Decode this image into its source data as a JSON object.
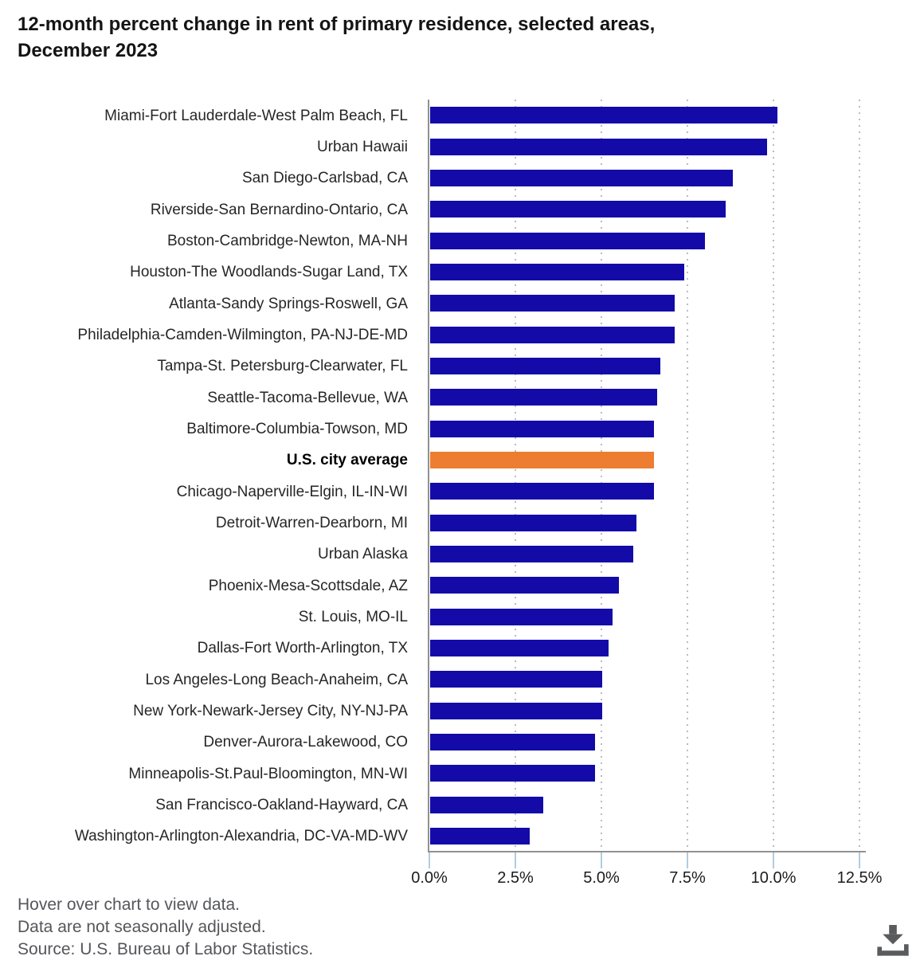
{
  "title": {
    "line1": "12-month percent change in rent of primary residence, selected areas,",
    "line2": "December 2023",
    "full": "12-month percent change in rent of primary residence, selected areas, December 2023"
  },
  "footer": {
    "hover_note": "Hover over chart to view data.",
    "adjustment_note": "Data are not seasonally adjusted.",
    "source_note": "Source: U.S. Bureau of Labor Statistics."
  },
  "icons": {
    "download": "download-icon"
  },
  "colors": {
    "bar_blue": "#130aa8",
    "bar_orange": "#ed7d31",
    "axis_gray": "#919191",
    "gridline_gray": "#bcbcbc",
    "tick_blue": "#b3cbdf",
    "label_dark": "#262626",
    "footer_gray": "#55565a",
    "icon_gray": "#5a5b5d"
  },
  "chart_data": {
    "type": "bar",
    "orientation": "horizontal",
    "title": "12-month percent change in rent of primary residence, selected areas, December 2023",
    "xlabel": "12-month percent change",
    "ylabel": "",
    "grid": "dotted-vertical",
    "legend": "none",
    "xlim": [
      0,
      12.7
    ],
    "x_tick_values": [
      0,
      2.5,
      5,
      7.5,
      10,
      12.5
    ],
    "x_tick_labels": [
      "0.0%",
      "2.5%",
      "5.0%",
      "7.5%",
      "10.0%",
      "12.5%"
    ],
    "highlight_index": 11,
    "categories": [
      "Miami-Fort Lauderdale-West Palm Beach, FL",
      "Urban Hawaii",
      "San Diego-Carlsbad, CA",
      "Riverside-San Bernardino-Ontario, CA",
      "Boston-Cambridge-Newton, MA-NH",
      "Houston-The Woodlands-Sugar Land, TX",
      "Atlanta-Sandy Springs-Roswell, GA",
      "Philadelphia-Camden-Wilmington, PA-NJ-DE-MD",
      "Tampa-St. Petersburg-Clearwater, FL",
      "Seattle-Tacoma-Bellevue, WA",
      "Baltimore-Columbia-Towson, MD",
      "U.S. city average",
      "Chicago-Naperville-Elgin, IL-IN-WI",
      "Detroit-Warren-Dearborn, MI",
      "Urban Alaska",
      "Phoenix-Mesa-Scottsdale, AZ",
      "St. Louis, MO-IL",
      "Dallas-Fort Worth-Arlington, TX",
      "Los Angeles-Long Beach-Anaheim, CA",
      "New York-Newark-Jersey City, NY-NJ-PA",
      "Denver-Aurora-Lakewood, CO",
      "Minneapolis-St.Paul-Bloomington, MN-WI",
      "San Francisco-Oakland-Hayward, CA",
      "Washington-Arlington-Alexandria, DC-VA-MD-WV"
    ],
    "values": [
      10.1,
      9.8,
      8.8,
      8.6,
      8.0,
      7.4,
      7.1,
      7.1,
      6.7,
      6.6,
      6.5,
      6.5,
      6.5,
      6.0,
      5.9,
      5.5,
      5.3,
      5.2,
      5.0,
      5.0,
      4.8,
      4.8,
      3.3,
      2.9
    ]
  }
}
